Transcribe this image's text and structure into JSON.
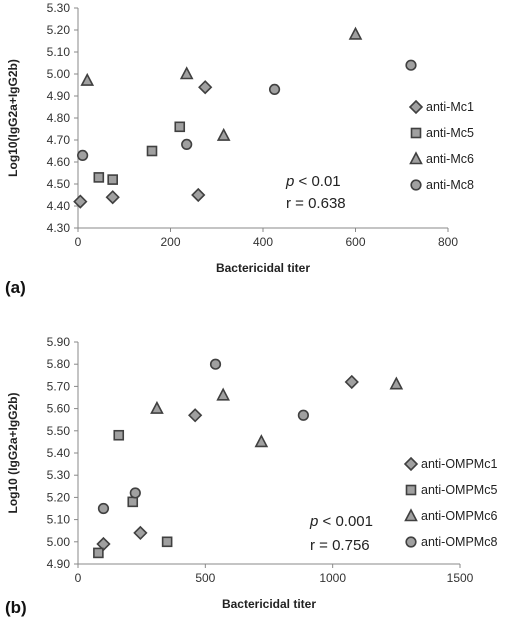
{
  "chart_data": [
    {
      "type": "scatter",
      "panel_label": "(a)",
      "xlabel": "Bactericidal titer",
      "ylabel": "Log10(IgG2a+IgG2b)",
      "xlim": [
        0,
        800
      ],
      "ylim": [
        4.3,
        5.3
      ],
      "xticks": [
        "0",
        "200",
        "400",
        "600",
        "800"
      ],
      "yticks": [
        "4.30",
        "4.40",
        "4.50",
        "4.60",
        "4.70",
        "4.80",
        "4.90",
        "5.00",
        "5.10",
        "5.20",
        "5.30"
      ],
      "legend_position": "right",
      "annotation": {
        "p_symbol": "p",
        "p_text": " < 0.01",
        "r_text": "r = 0.638"
      },
      "series": [
        {
          "name": "anti-Mc1",
          "marker": "diamond",
          "points": [
            [
              5,
              4.42
            ],
            [
              75,
              4.44
            ],
            [
              260,
              4.45
            ],
            [
              275,
              4.94
            ]
          ]
        },
        {
          "name": "anti-Mc5",
          "marker": "square",
          "points": [
            [
              45,
              4.53
            ],
            [
              75,
              4.52
            ],
            [
              160,
              4.65
            ],
            [
              220,
              4.76
            ]
          ]
        },
        {
          "name": "anti-Mc6",
          "marker": "triangle",
          "points": [
            [
              20,
              4.97
            ],
            [
              235,
              5.0
            ],
            [
              315,
              4.72
            ],
            [
              600,
              5.18
            ]
          ]
        },
        {
          "name": "anti-Mc8",
          "marker": "circle",
          "points": [
            [
              10,
              4.63
            ],
            [
              235,
              4.68
            ],
            [
              425,
              4.93
            ],
            [
              720,
              5.04
            ]
          ]
        }
      ]
    },
    {
      "type": "scatter",
      "panel_label": "(b)",
      "xlabel": "Bactericidal titer",
      "ylabel": "Log10 (IgG2a+IgG2b)",
      "xlim": [
        0,
        1500
      ],
      "ylim": [
        4.9,
        5.9
      ],
      "xticks": [
        "0",
        "500",
        "1000",
        "1500"
      ],
      "yticks": [
        "4.90",
        "5.00",
        "5.10",
        "5.20",
        "5.30",
        "5.40",
        "5.50",
        "5.60",
        "5.70",
        "5.80",
        "5.90"
      ],
      "legend_position": "right",
      "annotation": {
        "p_symbol": "p",
        "p_text": " < 0.001",
        "r_text": "r = 0.756"
      },
      "series": [
        {
          "name": "anti-OMPMc1",
          "marker": "diamond",
          "points": [
            [
              100,
              4.99
            ],
            [
              245,
              5.04
            ],
            [
              460,
              5.57
            ],
            [
              1075,
              5.72
            ]
          ]
        },
        {
          "name": "anti-OMPMc5",
          "marker": "square",
          "points": [
            [
              80,
              4.95
            ],
            [
              160,
              5.48
            ],
            [
              215,
              5.18
            ],
            [
              350,
              5.0
            ]
          ]
        },
        {
          "name": "anti-OMPMc6",
          "marker": "triangle",
          "points": [
            [
              310,
              5.6
            ],
            [
              570,
              5.66
            ],
            [
              720,
              5.45
            ],
            [
              1250,
              5.71
            ]
          ]
        },
        {
          "name": "anti-OMPMc8",
          "marker": "circle",
          "points": [
            [
              100,
              5.15
            ],
            [
              225,
              5.22
            ],
            [
              540,
              5.8
            ],
            [
              885,
              5.57
            ]
          ]
        }
      ]
    }
  ]
}
